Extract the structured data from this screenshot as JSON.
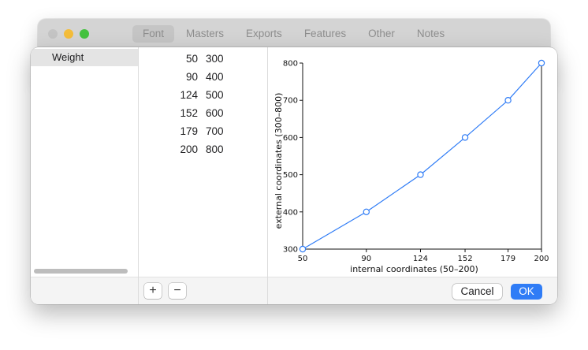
{
  "window": {
    "toolbar_tabs": [
      {
        "label": "Font"
      },
      {
        "label": "Masters"
      },
      {
        "label": "Exports"
      },
      {
        "label": "Features"
      },
      {
        "label": "Other"
      },
      {
        "label": "Notes"
      }
    ],
    "active_tab": "Font"
  },
  "axes_list": {
    "items": [
      {
        "label": "Weight",
        "selected": true
      }
    ]
  },
  "mapping": {
    "rows": [
      {
        "internal": "50",
        "external": "300"
      },
      {
        "internal": "90",
        "external": "400"
      },
      {
        "internal": "124",
        "external": "500"
      },
      {
        "internal": "152",
        "external": "600"
      },
      {
        "internal": "179",
        "external": "700"
      },
      {
        "internal": "200",
        "external": "800"
      }
    ],
    "add_label": "+",
    "remove_label": "−"
  },
  "chart_data": {
    "type": "line",
    "x": [
      50,
      90,
      124,
      152,
      179,
      200
    ],
    "y": [
      300,
      400,
      500,
      600,
      700,
      800
    ],
    "x_ticks": [
      50,
      90,
      124,
      152,
      179,
      200
    ],
    "y_ticks": [
      300,
      400,
      500,
      600,
      700,
      800
    ],
    "xlim": [
      50,
      200
    ],
    "ylim": [
      300,
      800
    ],
    "xlabel": "internal coordinates (50–200)",
    "ylabel": "external coordinates (300–800)",
    "grid": false,
    "line_color": "#2f7cf6",
    "marker": "open-circle"
  },
  "dialog": {
    "cancel_label": "Cancel",
    "ok_label": "OK"
  },
  "colors": {
    "accent": "#2f7cf6",
    "traffic_close": "#c4c4c4",
    "traffic_minimize": "#f4bd3a",
    "traffic_zoom": "#45c23f"
  }
}
